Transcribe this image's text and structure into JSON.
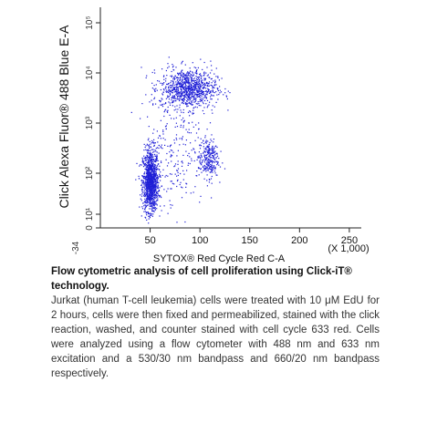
{
  "chart_data": {
    "type": "scatter",
    "xlabel": "SYTOX® Red Cycle Red C-A",
    "x_multiplier_label": "(X 1,000)",
    "ylabel": "Click Alexa Fluor® 488 Blue E-A",
    "xlim": [
      0,
      262
    ],
    "x_scale": "linear",
    "y_scale": "biexponential",
    "x_tick_labels": [
      "50",
      "100",
      "150",
      "200",
      "250"
    ],
    "x_ticks": [
      50,
      100,
      150,
      200,
      250
    ],
    "y_tick_labels": [
      "10⁵",
      "10⁴",
      "10³",
      "10²",
      "10¹",
      "0"
    ],
    "y_min_label": "-34",
    "grid": false,
    "legend": "none",
    "point_color": "#1f1fd6",
    "populations": [
      {
        "x": 50,
        "y_decade": 1.8,
        "spread_x": 4,
        "spread_y": 0.35,
        "share": 0.45
      },
      {
        "x": 88,
        "y_decade": 3.7,
        "spread_x": 14,
        "spread_y": 0.2,
        "share": 0.35
      },
      {
        "x": 108,
        "y_decade": 2.3,
        "spread_x": 5,
        "spread_y": 0.2,
        "share": 0.1
      },
      {
        "x": 75,
        "y_decade": 2.6,
        "spread_x": 15,
        "spread_y": 0.7,
        "share": 0.1
      }
    ]
  },
  "caption": {
    "title": "Flow cytometric analysis of cell proliferation using Click-iT® technology.",
    "body": "Jurkat (human T-cell leukemia) cells were treated with 10 μM EdU for 2 hours, cells were then fixed and permeabilized, stained with the click reaction, washed, and counter stained with cell cycle 633 red. Cells were analyzed using a flow cytometer with 488 nm and 633 nm excitation and a 530/30 nm bandpass and 660/20 nm bandpass respectively."
  }
}
